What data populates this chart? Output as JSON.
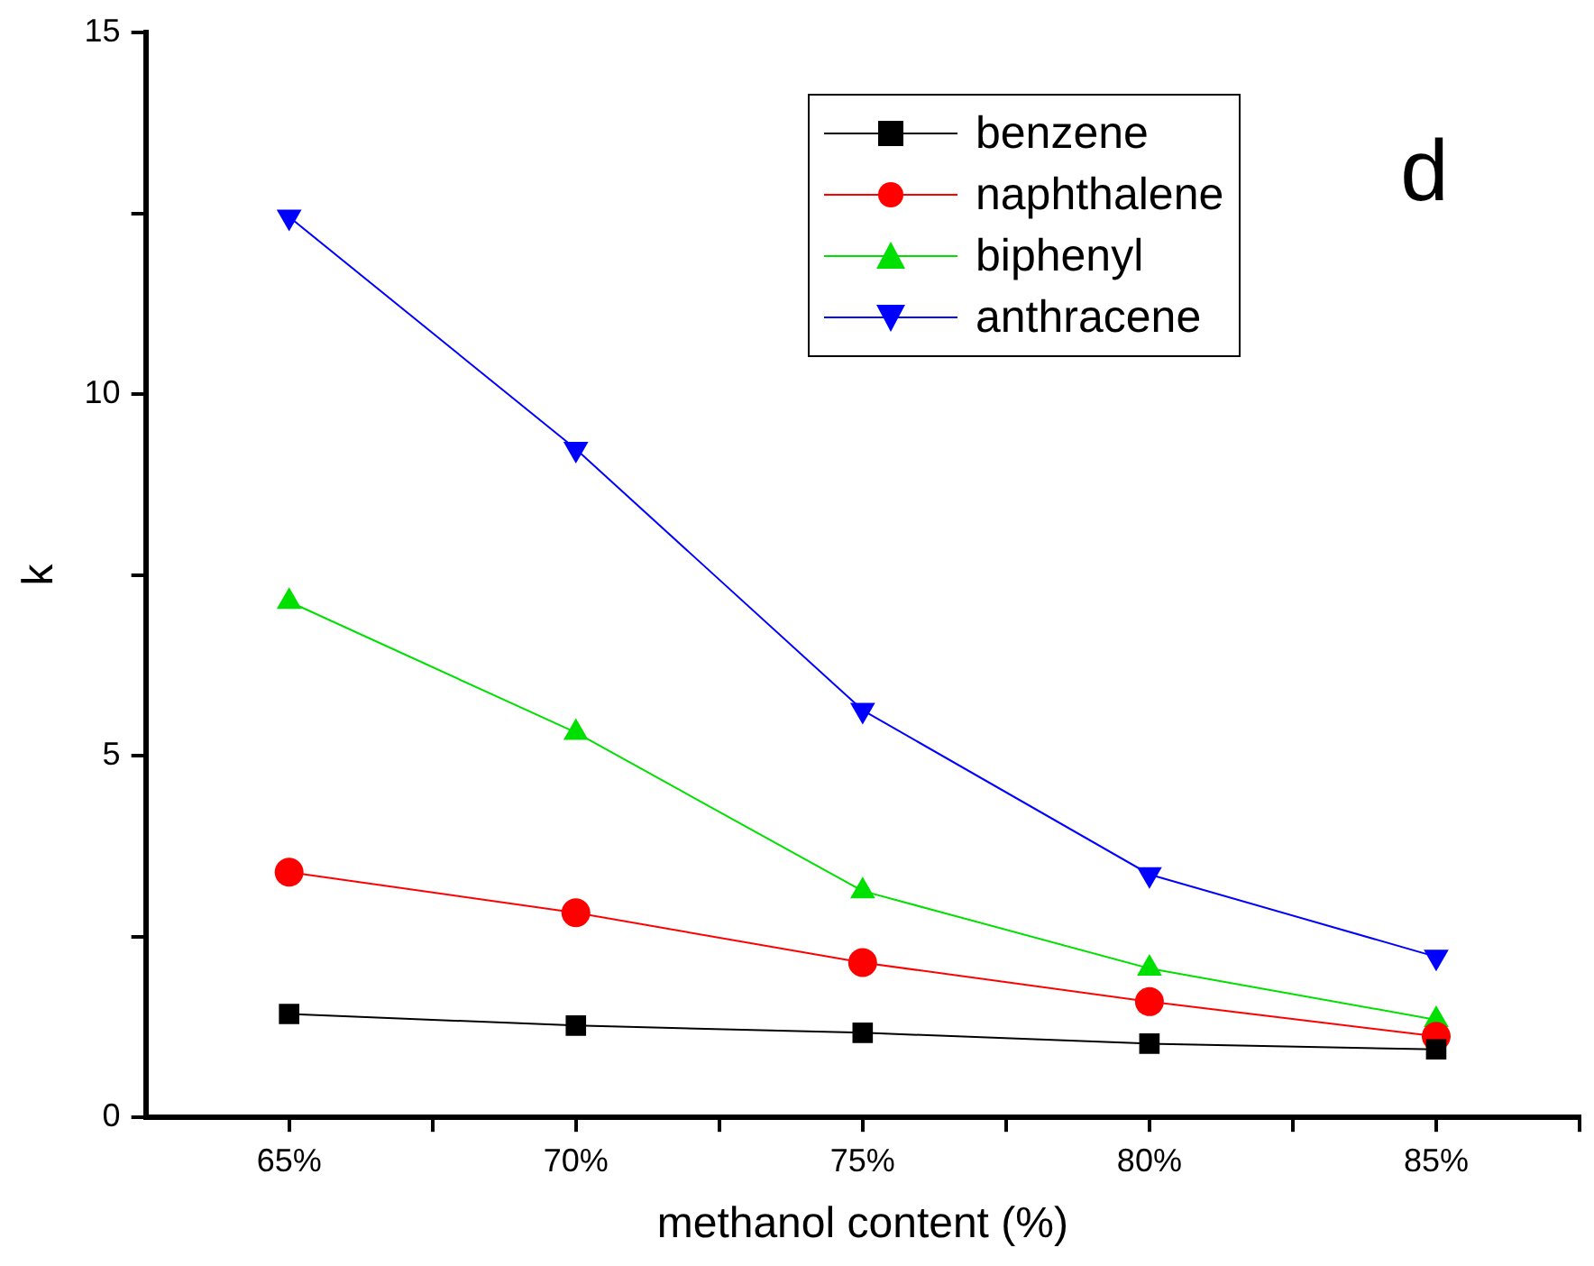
{
  "chart_data": {
    "type": "line",
    "xlabel": "methanol content (%)",
    "ylabel": "k",
    "annotations": [
      "d"
    ],
    "x": [
      65,
      70,
      75,
      80,
      85
    ],
    "xlim": [
      62.5,
      87.5
    ],
    "xticks": [
      {
        "value": 65,
        "label": "65%"
      },
      {
        "value": 67.5,
        "label": null
      },
      {
        "value": 70,
        "label": "70%"
      },
      {
        "value": 72.5,
        "label": null
      },
      {
        "value": 75,
        "label": "75%"
      },
      {
        "value": 77.5,
        "label": null
      },
      {
        "value": 80,
        "label": "80%"
      },
      {
        "value": 82.5,
        "label": null
      },
      {
        "value": 85,
        "label": "85%"
      },
      {
        "value": 87.5,
        "label": null
      }
    ],
    "ylim": [
      0,
      15
    ],
    "yticks": [
      0,
      {
        "value": 2.5,
        "label": null
      },
      5,
      {
        "value": 7.5,
        "label": null
      },
      10,
      {
        "value": 12.5,
        "label": null
      },
      15
    ],
    "grid": false,
    "legend": "top right",
    "line_style": "solid",
    "series": [
      {
        "name": "benzene",
        "color": "#000000",
        "marker": "square",
        "values": [
          1.43,
          1.27,
          1.17,
          1.02,
          0.94
        ]
      },
      {
        "name": "naphthalene",
        "color": "#ff0000",
        "marker": "circle",
        "values": [
          3.39,
          2.83,
          2.14,
          1.6,
          1.12
        ]
      },
      {
        "name": "biphenyl",
        "color": "#00e000",
        "marker": "triangle",
        "values": [
          7.13,
          5.32,
          3.13,
          2.06,
          1.35
        ]
      },
      {
        "name": "anthracene",
        "color": "#0000ff",
        "marker": "triangle-down",
        "values": [
          12.45,
          9.24,
          5.63,
          3.36,
          2.22
        ]
      }
    ]
  }
}
